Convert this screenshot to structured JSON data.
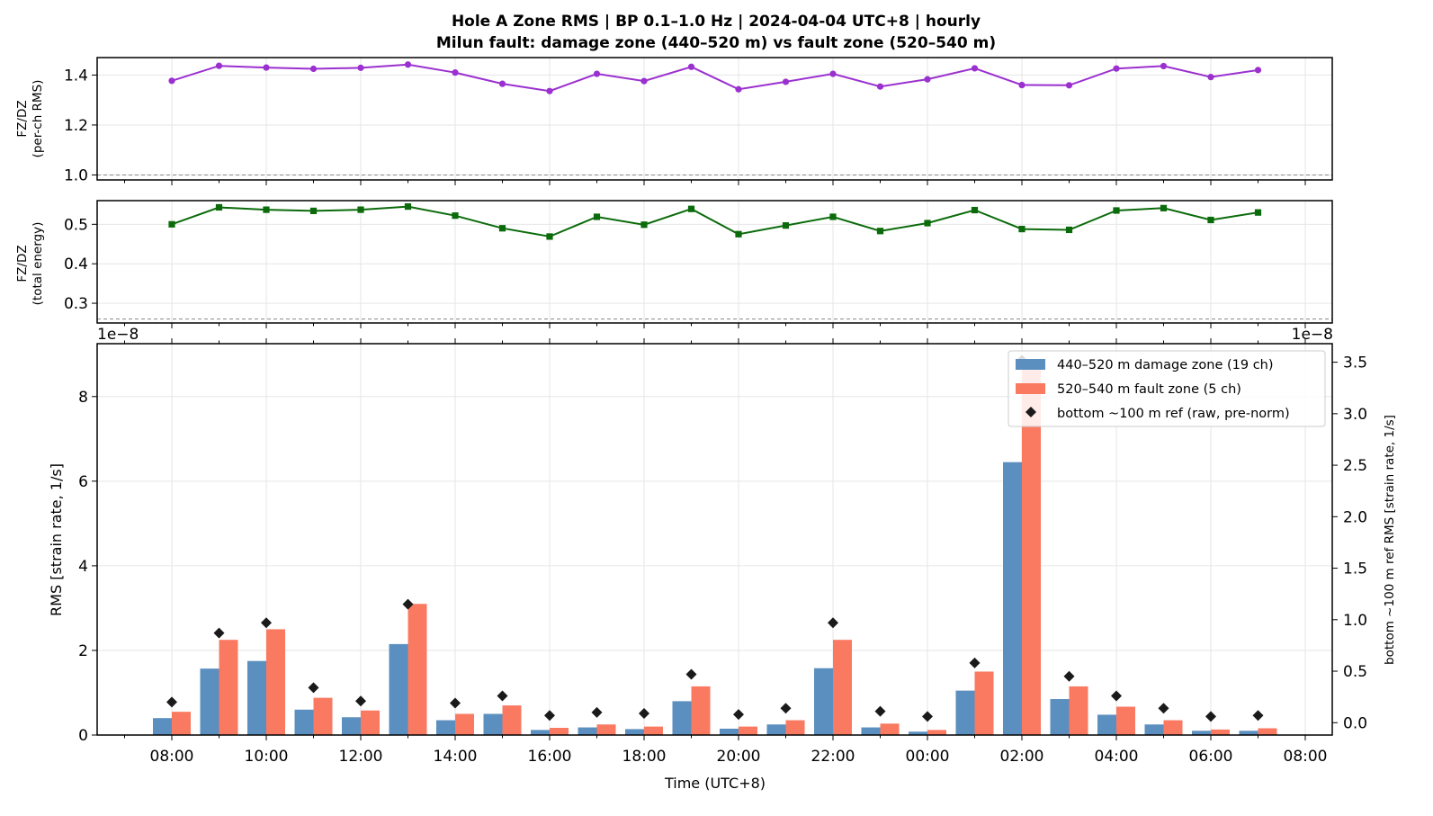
{
  "title_line1": "Hole A Zone RMS  |  BP 0.1–1.0 Hz  |  2024-04-04 UTC+8  |  hourly",
  "title_line2": "Milun fault: damage zone (440–520 m) vs fault zone (520–540 m)",
  "colors": {
    "ratio_rms": "#9b30d0",
    "ratio_energy": "#0b6b0b",
    "damage_zone": "#5b8fbf",
    "fault_zone": "#fa7a61",
    "ref_marker": "#1a1a1a",
    "grid": "#e6e6e6",
    "ref_line": "#888888"
  },
  "chart_data": [
    {
      "type": "line",
      "panel": "top",
      "ylabel_line1": "FZ/DZ",
      "ylabel_line2": "(per-ch RMS)",
      "ylim": [
        0.98,
        1.47
      ],
      "yticks": [
        "1.0",
        "1.2",
        "1.4"
      ],
      "reference_line": 1.0,
      "grid": true,
      "series": [
        {
          "values": [
            1.377,
            1.437,
            1.43,
            1.425,
            1.429,
            1.442,
            1.41,
            1.365,
            1.336,
            1.405,
            1.376,
            1.433,
            1.343,
            1.373,
            1.405,
            1.354,
            1.383,
            1.427,
            1.36,
            1.359,
            1.426,
            1.436,
            1.392,
            1.42
          ],
          "marker": "circle"
        }
      ]
    },
    {
      "type": "line",
      "panel": "middle",
      "ylabel_line1": "FZ/DZ",
      "ylabel_line2": "(total energy)",
      "ylim": [
        0.25,
        0.56
      ],
      "yticks": [
        "0.3",
        "0.4",
        "0.5"
      ],
      "reference_line": 0.26,
      "grid": true,
      "series": [
        {
          "values": [
            0.5,
            0.543,
            0.537,
            0.534,
            0.537,
            0.545,
            0.522,
            0.49,
            0.469,
            0.519,
            0.499,
            0.539,
            0.475,
            0.497,
            0.519,
            0.483,
            0.503,
            0.536,
            0.488,
            0.486,
            0.535,
            0.541,
            0.511,
            0.53
          ],
          "marker": "square"
        }
      ]
    },
    {
      "type": "bar",
      "panel": "bottom",
      "xlabel": "Time (UTC+8)",
      "ylabel": "RMS  [strain rate, 1/s]",
      "ylabel_right": "bottom ~100 m ref RMS  [strain rate, 1/s]",
      "offset_left": "1e−8",
      "offset_right": "1e−8",
      "ylim": [
        0,
        9.25
      ],
      "ylim_right": [
        -0.12,
        3.68
      ],
      "yticks": [
        "0",
        "2",
        "4",
        "6",
        "8"
      ],
      "yticks_right": [
        "0.0",
        "0.5",
        "1.0",
        "1.5",
        "2.0",
        "2.5",
        "3.0",
        "3.5"
      ],
      "x_tick_labels": [
        "08:00",
        "10:00",
        "12:00",
        "14:00",
        "16:00",
        "18:00",
        "20:00",
        "22:00",
        "00:00",
        "02:00",
        "04:00",
        "06:00",
        "08:00"
      ],
      "categories": [
        "08:00",
        "09:00",
        "10:00",
        "11:00",
        "12:00",
        "13:00",
        "14:00",
        "15:00",
        "16:00",
        "17:00",
        "18:00",
        "19:00",
        "20:00",
        "21:00",
        "22:00",
        "23:00",
        "00:00",
        "01:00",
        "02:00",
        "03:00",
        "04:00",
        "05:00",
        "06:00",
        "07:00"
      ],
      "grid": true,
      "legend_position": "top-right",
      "series": [
        {
          "name": "440–520 m  damage zone (19 ch)",
          "values": [
            0.4,
            1.57,
            1.75,
            0.6,
            0.42,
            2.15,
            0.35,
            0.5,
            0.12,
            0.18,
            0.14,
            0.8,
            0.15,
            0.25,
            1.58,
            0.18,
            0.08,
            1.05,
            6.45,
            0.85,
            0.48,
            0.25,
            0.1,
            0.1
          ]
        },
        {
          "name": "520–540 m  fault zone (5 ch)",
          "values": [
            0.55,
            2.25,
            2.5,
            0.88,
            0.58,
            3.1,
            0.5,
            0.7,
            0.17,
            0.25,
            0.2,
            1.15,
            0.2,
            0.35,
            2.25,
            0.27,
            0.12,
            1.5,
            8.7,
            1.15,
            0.67,
            0.35,
            0.13,
            0.16
          ]
        },
        {
          "name": "bottom ~100 m ref (raw, pre-norm)",
          "axis": "right",
          "values": [
            0.2,
            0.87,
            0.97,
            0.34,
            0.21,
            1.15,
            0.19,
            0.26,
            0.07,
            0.1,
            0.09,
            0.47,
            0.08,
            0.14,
            0.97,
            0.11,
            0.06,
            0.58,
            3.52,
            0.45,
            0.26,
            0.14,
            0.06,
            0.07
          ]
        }
      ]
    }
  ]
}
